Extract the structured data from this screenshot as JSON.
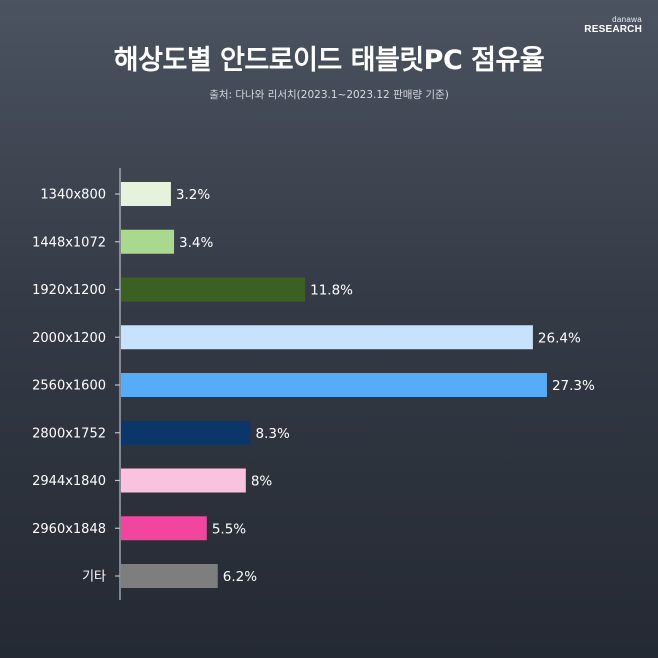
{
  "brand": {
    "line1": "danawa",
    "line2": "RESEARCH"
  },
  "header": {
    "title": "해상도별 안드로이드 태블릿PC 점유율",
    "subtitle": "출처: 다나와 리서치(2023.1~2023.12 판매량 기준)"
  },
  "chart_data": {
    "type": "bar",
    "orientation": "horizontal",
    "title": "해상도별 안드로이드 태블릿PC 점유율",
    "subtitle": "출처: 다나와 리서치(2023.1~2023.12 판매량 기준)",
    "categories": [
      "1340x800",
      "1448x1072",
      "1920x1200",
      "2000x1200",
      "2560x1600",
      "2800x1752",
      "2944x1840",
      "2960x1848",
      "기타"
    ],
    "values": [
      3.2,
      3.4,
      11.8,
      26.4,
      27.3,
      8.3,
      8,
      5.5,
      6.2
    ],
    "value_labels": [
      "3.2%",
      "3.4%",
      "11.8%",
      "26.4%",
      "27.3%",
      "8.3%",
      "8%",
      "5.5%",
      "6.2%"
    ],
    "colors": [
      "#e6f3dc",
      "#a9d98e",
      "#3c6021",
      "#c7e2fd",
      "#55acf7",
      "#0b3669",
      "#fbc2e0",
      "#f2469e",
      "#7e7e7e"
    ],
    "xlim": [
      0,
      28.2
    ],
    "xlabel": "",
    "ylabel": "",
    "grid": false,
    "legend": "none"
  }
}
